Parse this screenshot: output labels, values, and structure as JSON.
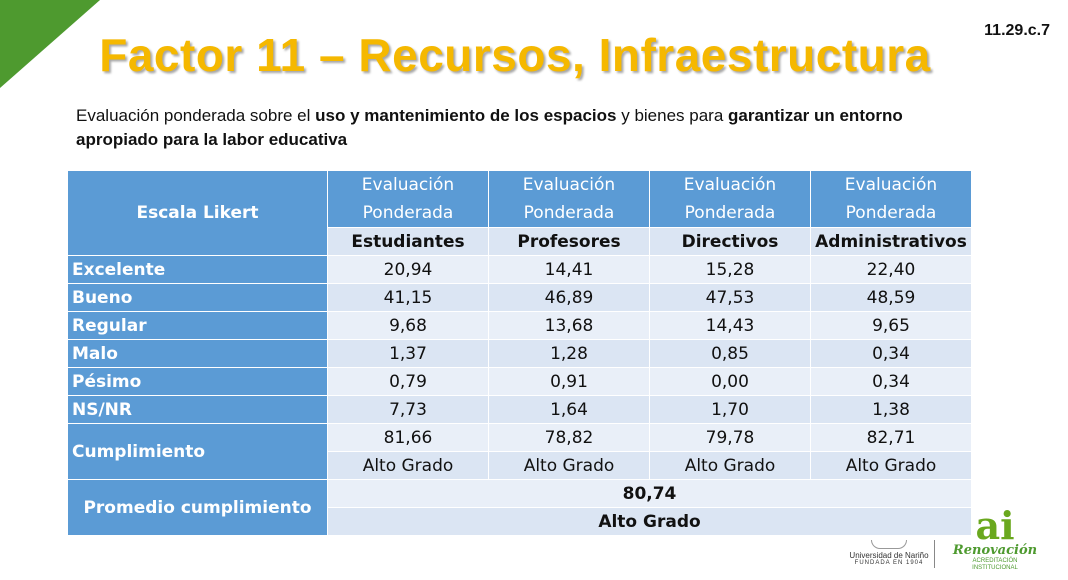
{
  "slide_code": "11.29.c.7",
  "title": "Factor 11 – Recursos, Infraestructura",
  "subtitle": {
    "p1": "Evaluación ponderada sobre el ",
    "b1": "uso y mantenimiento de los espacios",
    "p2": " y bienes para ",
    "b2": "garantizar un entorno apropiado para la labor educativa"
  },
  "table": {
    "corner_label": "Escala Likert",
    "group_header": "Evaluación Ponderada",
    "columns": [
      "Estudiantes",
      "Profesores",
      "Directivos",
      "Administrativos"
    ],
    "rows": [
      {
        "label": "Excelente",
        "values": [
          "20,94",
          "14,41",
          "15,28",
          "22,40"
        ]
      },
      {
        "label": "Bueno",
        "values": [
          "41,15",
          "46,89",
          "47,53",
          "48,59"
        ]
      },
      {
        "label": "Regular",
        "values": [
          "9,68",
          "13,68",
          "14,43",
          "9,65"
        ]
      },
      {
        "label": "Malo",
        "values": [
          "1,37",
          "1,28",
          "0,85",
          "0,34"
        ]
      },
      {
        "label": "Pésimo",
        "values": [
          "0,79",
          "0,91",
          "0,00",
          "0,34"
        ]
      },
      {
        "label": "NS/NR",
        "values": [
          "7,73",
          "1,64",
          "1,70",
          "1,38"
        ]
      }
    ],
    "cumplimiento": {
      "label": "Cumplimiento",
      "values": [
        "81,66",
        "78,82",
        "79,78",
        "82,71"
      ],
      "grades": [
        "Alto Grado",
        "Alto Grado",
        "Alto Grado",
        "Alto Grado"
      ]
    },
    "promedio": {
      "label": "Promedio cumplimiento",
      "value": "80,74",
      "grade": "Alto Grado"
    }
  },
  "logos": {
    "university_name": "Universidad de Nariño",
    "university_founded": "FUNDADA EN 1904",
    "brand_letters": "ai",
    "brand_name": "Renovación",
    "brand_tagline": "ACREDITACIÓN INSTITUCIONAL"
  },
  "colors": {
    "header_blue": "#5b9bd5",
    "row_light": "#dbe5f3",
    "row_lighter": "#e9eff8",
    "title_gold": "#f5b800",
    "corner_green": "#4e9a2f"
  }
}
